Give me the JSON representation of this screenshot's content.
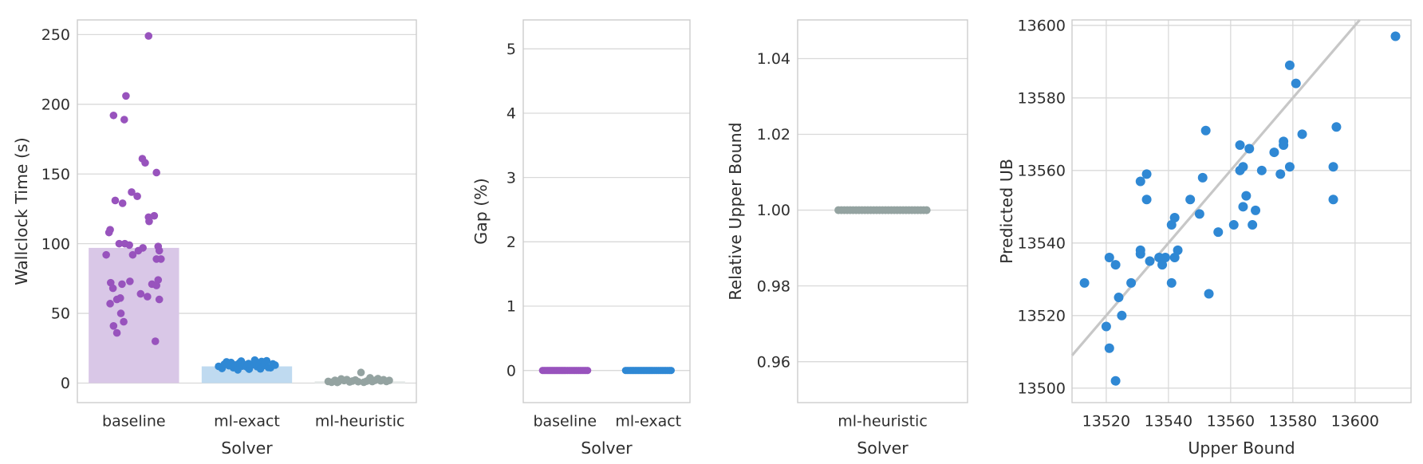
{
  "figure": {
    "background": "#ffffff",
    "text_color": "#2e2e2e",
    "grid_color": "#d9d9d9",
    "spine_color": "#cccccc"
  },
  "chart_data": [
    {
      "type": "bar",
      "title": "",
      "xlabel": "Solver",
      "ylabel": "Wallclock Time (s)",
      "categories": [
        "baseline",
        "ml-exact",
        "ml-heuristic"
      ],
      "bar_values": [
        97,
        12,
        1.3
      ],
      "bar_colors": [
        "#d9c7e7",
        "#bfdaf0",
        "#e6eae9"
      ],
      "series_colors": [
        "#9853bd",
        "#2f88d4",
        "#94a3a1"
      ],
      "yticks": [
        [
          0,
          "0"
        ],
        [
          50,
          "50"
        ],
        [
          100,
          "100"
        ],
        [
          150,
          "150"
        ],
        [
          200,
          "200"
        ],
        [
          250,
          "250"
        ]
      ],
      "ylim": [
        -14,
        260.5
      ],
      "grid": "horizontal",
      "legend": "none",
      "point_radius": 4.8,
      "points": [
        [
          [
            0.13,
            249
          ],
          [
            -0.07,
            206
          ],
          [
            -0.18,
            192
          ],
          [
            -0.085,
            189
          ],
          [
            0.075,
            161
          ],
          [
            0.1,
            158
          ],
          [
            0.2,
            151
          ],
          [
            -0.02,
            137
          ],
          [
            0.03,
            134
          ],
          [
            -0.165,
            131
          ],
          [
            -0.1,
            129
          ],
          [
            0.13,
            119
          ],
          [
            0.18,
            120
          ],
          [
            0.135,
            116
          ],
          [
            -0.21,
            110
          ],
          [
            -0.22,
            108
          ],
          [
            -0.13,
            100
          ],
          [
            -0.08,
            100
          ],
          [
            -0.04,
            99
          ],
          [
            0.04,
            95
          ],
          [
            -0.01,
            92
          ],
          [
            0.08,
            97
          ],
          [
            -0.245,
            92
          ],
          [
            0.215,
            98
          ],
          [
            0.225,
            95
          ],
          [
            0.2,
            89
          ],
          [
            0.24,
            89
          ],
          [
            -0.205,
            72
          ],
          [
            -0.185,
            68
          ],
          [
            -0.105,
            71
          ],
          [
            -0.035,
            73
          ],
          [
            0.16,
            71
          ],
          [
            0.2,
            70
          ],
          [
            0.215,
            74
          ],
          [
            0.06,
            64
          ],
          [
            0.12,
            62
          ],
          [
            -0.21,
            57
          ],
          [
            -0.15,
            60
          ],
          [
            -0.12,
            61
          ],
          [
            0.225,
            60
          ],
          [
            -0.115,
            50
          ],
          [
            -0.09,
            44
          ],
          [
            -0.18,
            41
          ],
          [
            -0.15,
            36
          ],
          [
            0.19,
            30
          ]
        ],
        [
          [
            -0.25,
            12
          ],
          [
            -0.22,
            10.5
          ],
          [
            -0.2,
            13.5
          ],
          [
            -0.18,
            15.2
          ],
          [
            -0.16,
            12.5
          ],
          [
            -0.14,
            14.8
          ],
          [
            -0.12,
            11
          ],
          [
            -0.1,
            13
          ],
          [
            -0.08,
            9.5
          ],
          [
            -0.065,
            14.5
          ],
          [
            -0.05,
            15.8
          ],
          [
            -0.04,
            12.2
          ],
          [
            -0.02,
            13.2
          ],
          [
            0,
            11.5
          ],
          [
            0.015,
            14
          ],
          [
            0.02,
            10
          ],
          [
            0.04,
            12.8
          ],
          [
            0.06,
            13.6
          ],
          [
            0.07,
            16.5
          ],
          [
            0.08,
            15
          ],
          [
            0.09,
            11.8
          ],
          [
            0.11,
            13
          ],
          [
            0.12,
            10.2
          ],
          [
            0.13,
            15.5
          ],
          [
            0.15,
            12.6
          ],
          [
            0.16,
            14.2
          ],
          [
            0.175,
            16
          ],
          [
            0.19,
            11.2
          ],
          [
            0.21,
            11
          ],
          [
            0.23,
            13.8
          ],
          [
            0.25,
            12.9
          ]
        ],
        [
          [
            -0.28,
            1.2
          ],
          [
            -0.25,
            0.6
          ],
          [
            -0.22,
            2.0
          ],
          [
            -0.19,
            1.0
          ],
          [
            -0.165,
            3.0
          ],
          [
            -0.14,
            1.8
          ],
          [
            -0.115,
            2.5
          ],
          [
            -0.09,
            0.8
          ],
          [
            -0.065,
            1.5
          ],
          [
            -0.04,
            2.2
          ],
          [
            -0.015,
            1.0
          ],
          [
            0.01,
            7.6
          ],
          [
            0.035,
            0.6
          ],
          [
            0.06,
            1.4
          ],
          [
            0.085,
            2.8
          ],
          [
            0.11,
            1.1
          ],
          [
            0.135,
            2.0
          ],
          [
            0.16,
            3.2
          ],
          [
            0.185,
            1.6
          ],
          [
            0.21,
            2.4
          ],
          [
            0.235,
            1.2
          ],
          [
            0.26,
            1.9
          ],
          [
            0.09,
            3.8
          ],
          [
            -0.2,
            0.5
          ]
        ]
      ]
    },
    {
      "type": "strip",
      "title": "",
      "xlabel": "Solver",
      "ylabel": "Gap (%)",
      "categories": [
        "baseline",
        "ml-exact"
      ],
      "series_colors": [
        "#9853bd",
        "#2f88d4"
      ],
      "yticks": [
        [
          0,
          "0"
        ],
        [
          1,
          "1"
        ],
        [
          2,
          "2"
        ],
        [
          3,
          "3"
        ],
        [
          4,
          "4"
        ],
        [
          5,
          "5"
        ]
      ],
      "ylim": [
        -0.5,
        5.45
      ],
      "grid": "horizontal",
      "legend": "none",
      "point_radius": 4.6,
      "points": [
        [
          [
            -0.268,
            0
          ],
          [
            -0.248,
            0
          ],
          [
            -0.228,
            0
          ],
          [
            -0.208,
            0
          ],
          [
            -0.19,
            0
          ],
          [
            -0.172,
            0
          ],
          [
            -0.154,
            0
          ],
          [
            -0.136,
            0
          ],
          [
            -0.118,
            0
          ],
          [
            -0.1,
            0
          ],
          [
            -0.082,
            0
          ],
          [
            -0.064,
            0
          ],
          [
            -0.046,
            0
          ],
          [
            -0.028,
            0
          ],
          [
            -0.01,
            0
          ],
          [
            0.008,
            0
          ],
          [
            0.03,
            0
          ],
          [
            0.052,
            0
          ],
          [
            0.074,
            0
          ],
          [
            0.096,
            0
          ],
          [
            0.118,
            0
          ],
          [
            0.14,
            0
          ],
          [
            0.162,
            0
          ],
          [
            0.184,
            0
          ],
          [
            0.206,
            0
          ],
          [
            0.228,
            0
          ],
          [
            0.25,
            0
          ],
          [
            0.272,
            0
          ]
        ],
        [
          [
            -0.272,
            0
          ],
          [
            -0.252,
            0
          ],
          [
            -0.232,
            0
          ],
          [
            -0.212,
            0
          ],
          [
            -0.193,
            0
          ],
          [
            -0.174,
            0
          ],
          [
            -0.155,
            0
          ],
          [
            -0.136,
            0
          ],
          [
            -0.117,
            0
          ],
          [
            -0.098,
            0
          ],
          [
            -0.079,
            0
          ],
          [
            -0.06,
            0
          ],
          [
            -0.041,
            0
          ],
          [
            -0.022,
            0
          ],
          [
            -0.003,
            0
          ],
          [
            0.016,
            0
          ],
          [
            0.035,
            0
          ],
          [
            0.056,
            0
          ],
          [
            0.078,
            0
          ],
          [
            0.1,
            0
          ],
          [
            0.122,
            0
          ],
          [
            0.144,
            0
          ],
          [
            0.166,
            0
          ],
          [
            0.188,
            0
          ],
          [
            0.21,
            0
          ],
          [
            0.232,
            0
          ],
          [
            0.254,
            0
          ],
          [
            0.274,
            0
          ]
        ]
      ]
    },
    {
      "type": "strip",
      "title": "",
      "xlabel": "Solver",
      "ylabel": "Relative Upper Bound",
      "categories": [
        "ml-heuristic"
      ],
      "series_colors": [
        "#94a3a1"
      ],
      "yticks": [
        [
          0.96,
          "0.96"
        ],
        [
          0.98,
          "0.98"
        ],
        [
          1.0,
          "1.00"
        ],
        [
          1.02,
          "1.02"
        ],
        [
          1.04,
          "1.04"
        ]
      ],
      "ylim": [
        0.9492,
        1.0502
      ],
      "grid": "horizontal",
      "legend": "none",
      "point_radius": 5,
      "points": [
        [
          [
            -0.26,
            1.0
          ],
          [
            -0.2427,
            1.0
          ],
          [
            -0.2254,
            1.0
          ],
          [
            -0.2081,
            1.0
          ],
          [
            -0.1908,
            1.0
          ],
          [
            -0.1735,
            1.0
          ],
          [
            -0.1562,
            1.0
          ],
          [
            -0.1389,
            1.0
          ],
          [
            -0.1216,
            1.0
          ],
          [
            -0.1043,
            1.0
          ],
          [
            -0.087,
            1.0
          ],
          [
            -0.0697,
            1.0
          ],
          [
            -0.0524,
            1.0
          ],
          [
            -0.0351,
            1.0
          ],
          [
            -0.0178,
            1.0
          ],
          [
            -0.0005,
            1.0
          ],
          [
            0.0168,
            1.0
          ],
          [
            0.0341,
            1.0
          ],
          [
            0.0514,
            1.0
          ],
          [
            0.0687,
            1.0
          ],
          [
            0.086,
            1.0
          ],
          [
            0.1033,
            1.0
          ],
          [
            0.1206,
            1.0
          ],
          [
            0.1379,
            1.0
          ],
          [
            0.1552,
            1.0
          ],
          [
            0.1725,
            1.0
          ],
          [
            0.1898,
            1.0
          ],
          [
            0.2071,
            1.0
          ],
          [
            0.2244,
            1.0
          ],
          [
            0.2417,
            1.0
          ],
          [
            0.259,
            1.0
          ]
        ]
      ]
    },
    {
      "type": "scatter",
      "title": "",
      "xlabel": "Upper Bound",
      "ylabel": "Predicted UB",
      "xticks": [
        [
          13520,
          "13520"
        ],
        [
          13540,
          "13540"
        ],
        [
          13560,
          "13560"
        ],
        [
          13580,
          "13580"
        ],
        [
          13600,
          "13600"
        ]
      ],
      "yticks": [
        [
          13500,
          "13500"
        ],
        [
          13520,
          "13520"
        ],
        [
          13540,
          "13540"
        ],
        [
          13560,
          "13560"
        ],
        [
          13580,
          "13580"
        ],
        [
          13600,
          "13600"
        ]
      ],
      "xlim": [
        13509,
        13618
      ],
      "ylim": [
        13496,
        13601.5
      ],
      "grid": "both",
      "legend": "none",
      "identity_line": true,
      "identity_line_color": "#c7c7c7",
      "point_color": "#2f88d4",
      "point_radius": 6,
      "points": [
        [
          13513,
          13529
        ],
        [
          13520,
          13517
        ],
        [
          13521,
          13536
        ],
        [
          13521,
          13511
        ],
        [
          13523,
          13502
        ],
        [
          13523,
          13534
        ],
        [
          13524,
          13525
        ],
        [
          13525,
          13520
        ],
        [
          13528,
          13529
        ],
        [
          13531,
          13538
        ],
        [
          13531,
          13537
        ],
        [
          13531,
          13557
        ],
        [
          13533,
          13552
        ],
        [
          13533,
          13559
        ],
        [
          13534,
          13535
        ],
        [
          13537,
          13536
        ],
        [
          13538,
          13534
        ],
        [
          13539,
          13536
        ],
        [
          13541,
          13545
        ],
        [
          13542,
          13547
        ],
        [
          13541,
          13529
        ],
        [
          13542,
          13536
        ],
        [
          13543,
          13538
        ],
        [
          13547,
          13552
        ],
        [
          13550,
          13548
        ],
        [
          13551,
          13558
        ],
        [
          13552,
          13571
        ],
        [
          13553,
          13526
        ],
        [
          13556,
          13543
        ],
        [
          13561,
          13545
        ],
        [
          13563,
          13560
        ],
        [
          13564,
          13561
        ],
        [
          13563,
          13567
        ],
        [
          13564,
          13550
        ],
        [
          13565,
          13553
        ],
        [
          13566,
          13566
        ],
        [
          13567,
          13545
        ],
        [
          13568,
          13549
        ],
        [
          13570,
          13560
        ],
        [
          13574,
          13565
        ],
        [
          13576,
          13559
        ],
        [
          13577,
          13568
        ],
        [
          13577,
          13567
        ],
        [
          13579,
          13589
        ],
        [
          13579,
          13561
        ],
        [
          13581,
          13584
        ],
        [
          13583,
          13570
        ],
        [
          13594,
          13572
        ],
        [
          13593,
          13561
        ],
        [
          13593,
          13552
        ],
        [
          13613,
          13597
        ]
      ]
    }
  ]
}
